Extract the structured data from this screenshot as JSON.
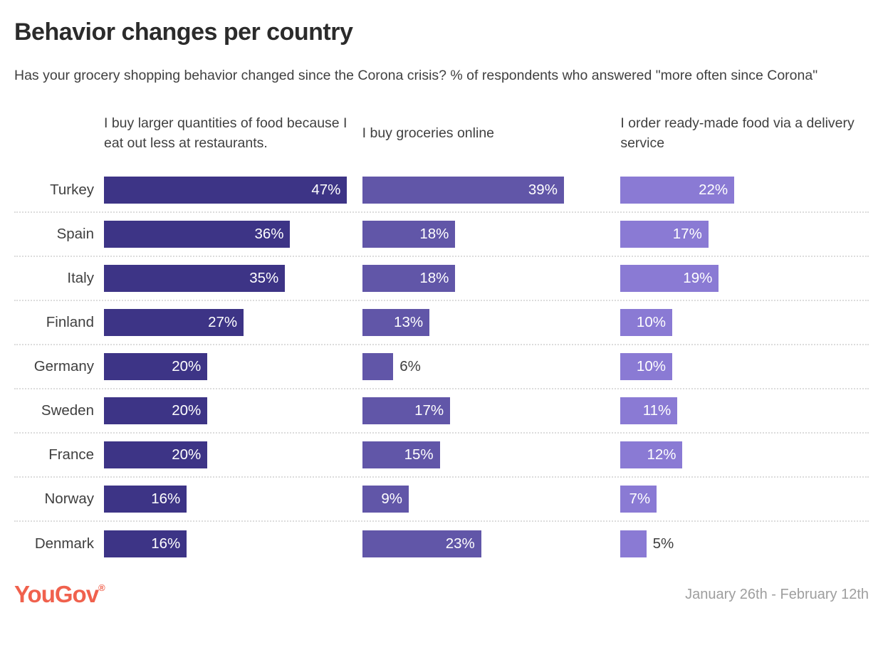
{
  "header": {
    "title": "Behavior changes per country",
    "subtitle": "Has your grocery shopping behavior changed since the Corona crisis? % of respondents who answered \"more often since Corona\""
  },
  "chart_data": {
    "type": "bar",
    "orientation": "horizontal",
    "categories": [
      "Turkey",
      "Spain",
      "Italy",
      "Finland",
      "Germany",
      "Sweden",
      "France",
      "Norway",
      "Denmark"
    ],
    "series": [
      {
        "name": "I buy larger quantities of food because I eat out less at restaurants.",
        "color": "#3d3486",
        "values": [
          47,
          36,
          35,
          27,
          20,
          20,
          20,
          16,
          16
        ]
      },
      {
        "name": "I buy groceries online",
        "color": "#6156a8",
        "values": [
          39,
          18,
          18,
          13,
          6,
          17,
          15,
          9,
          23
        ]
      },
      {
        "name": "I order ready-made food via a delivery service",
        "color": "#8a7ad4",
        "values": [
          22,
          17,
          19,
          10,
          10,
          11,
          12,
          7,
          5
        ]
      }
    ],
    "value_suffix": "%",
    "xlim": [
      0,
      48
    ],
    "min_inside_value": 7,
    "grid": "dotted row separators",
    "legend_position": "column headers above each panel"
  },
  "footer": {
    "logo_text": "YouGov",
    "logo_registered": "®",
    "logo_color": "#f0614d",
    "date_range": "January 26th - February 12th"
  }
}
